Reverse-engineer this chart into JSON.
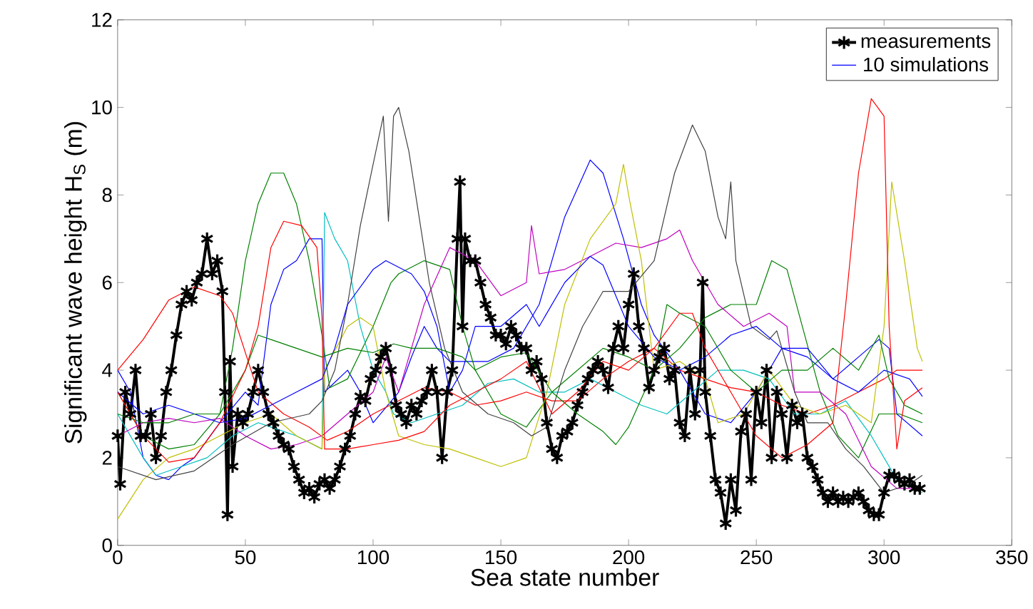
{
  "chart_data": {
    "type": "line",
    "xlabel": "Sea state number",
    "ylabel": "Significant wave height H$_{S}$ (m)",
    "xlim": [
      0,
      350
    ],
    "ylim": [
      0,
      12
    ],
    "xticks": [
      0,
      50,
      100,
      150,
      200,
      250,
      300,
      350
    ],
    "yticks": [
      0,
      2,
      4,
      6,
      8,
      10,
      12
    ],
    "grid": false,
    "legend": "top right",
    "line_style": "solid",
    "marker": "none",
    "series": [
      {
        "name": "measurements",
        "color": "#000000",
        "marker": "cross",
        "x": [
          0,
          1,
          3,
          5,
          7,
          9,
          11,
          13,
          15,
          17,
          19,
          21,
          23,
          25,
          27,
          29,
          31,
          33,
          35,
          37,
          39,
          41,
          42,
          43,
          44,
          45,
          47,
          49,
          51,
          53,
          55,
          57,
          59,
          61,
          63,
          65,
          67,
          69,
          71,
          73,
          75,
          77,
          79,
          81,
          83,
          85,
          87,
          89,
          91,
          93,
          95,
          97,
          99,
          101,
          103,
          105,
          107,
          109,
          111,
          113,
          115,
          117,
          119,
          121,
          123,
          125,
          127,
          129,
          131,
          133,
          134,
          135,
          136,
          138,
          140,
          142,
          144,
          146,
          148,
          150,
          152,
          154,
          156,
          158,
          160,
          162,
          164,
          166,
          168,
          170,
          172,
          174,
          176,
          178,
          180,
          182,
          184,
          186,
          188,
          190,
          192,
          194,
          196,
          198,
          200,
          202,
          204,
          206,
          208,
          210,
          212,
          214,
          216,
          218,
          220,
          222,
          224,
          226,
          228,
          229,
          230,
          232,
          234,
          236,
          238,
          240,
          242,
          244,
          246,
          248,
          250,
          252,
          254,
          256,
          258,
          260,
          262,
          264,
          266,
          268,
          270,
          272,
          274,
          276,
          278,
          280,
          282,
          284,
          286,
          288,
          290,
          292,
          294,
          296,
          298,
          300,
          302,
          304,
          306,
          308,
          310,
          312,
          314
        ],
        "values": [
          2.5,
          1.4,
          3.5,
          3.0,
          4.0,
          2.5,
          2.5,
          3.0,
          2.0,
          2.5,
          3.5,
          4.0,
          4.8,
          5.5,
          5.8,
          5.6,
          6.0,
          6.2,
          7.0,
          6.2,
          6.5,
          5.8,
          3.5,
          0.7,
          4.2,
          1.8,
          3.0,
          2.8,
          3.0,
          3.5,
          4.0,
          3.5,
          3.0,
          2.8,
          2.5,
          2.3,
          2.2,
          1.8,
          1.5,
          1.2,
          1.3,
          1.1,
          1.4,
          1.5,
          1.3,
          1.5,
          1.8,
          2.2,
          2.5,
          3.0,
          3.4,
          3.3,
          3.8,
          4.0,
          4.3,
          4.5,
          4.0,
          3.2,
          3.0,
          2.8,
          3.2,
          3.0,
          3.3,
          3.5,
          4.0,
          3.5,
          2.0,
          3.5,
          4.0,
          7.0,
          8.3,
          5.0,
          7.0,
          6.5,
          6.5,
          6.0,
          5.5,
          5.2,
          4.8,
          4.8,
          4.6,
          5.0,
          4.8,
          4.5,
          4.5,
          4.0,
          4.2,
          3.8,
          2.8,
          2.2,
          2.0,
          2.5,
          2.6,
          2.8,
          3.2,
          3.5,
          3.8,
          4.0,
          4.2,
          4.0,
          3.6,
          4.5,
          5.0,
          4.5,
          5.5,
          6.2,
          5.0,
          4.5,
          3.6,
          4.0,
          4.3,
          4.5,
          3.8,
          4.0,
          2.8,
          2.5,
          4.0,
          3.0,
          4.0,
          6.0,
          3.5,
          2.5,
          1.5,
          1.2,
          0.5,
          1.5,
          0.8,
          2.6,
          3.0,
          1.5,
          3.5,
          2.8,
          4.0,
          2.0,
          3.5,
          3.0,
          2.0,
          3.2,
          2.8,
          3.0,
          2.0,
          1.8,
          1.5,
          1.2,
          1.0,
          1.2,
          1.0,
          1.1,
          1.0,
          1.1,
          1.2,
          1.0,
          0.8,
          0.7,
          0.7,
          1.2,
          1.6,
          1.6,
          1.5,
          1.4,
          1.5,
          1.3,
          1.3
        ]
      },
      {
        "name": "10 simulations",
        "color": "#0000ff",
        "x": [
          0,
          5,
          10,
          15,
          20,
          25,
          30,
          40,
          50,
          55,
          60,
          65,
          70,
          75,
          80,
          81,
          90,
          95,
          100,
          110,
          115,
          120,
          125,
          130,
          135,
          145,
          155,
          165,
          175,
          185,
          190,
          198,
          205,
          210,
          220,
          230,
          240,
          250,
          260,
          270,
          280,
          290,
          298,
          302,
          305,
          315
        ],
        "values": [
          4.0,
          3.5,
          2.0,
          1.6,
          1.5,
          1.8,
          2.0,
          2.8,
          3.5,
          3.2,
          5.5,
          6.3,
          6.5,
          7.0,
          7.0,
          3.5,
          4.0,
          3.5,
          2.8,
          3.5,
          4.3,
          5.0,
          4.5,
          4.2,
          4.2,
          4.2,
          4.5,
          5.5,
          7.5,
          8.8,
          8.5,
          7.0,
          5.5,
          4.8,
          4.0,
          3.0,
          2.8,
          3.5,
          4.5,
          4.3,
          3.8,
          4.3,
          4.7,
          4.5,
          3.0,
          2.5
        ]
      },
      {
        "color": "#008000",
        "x": [
          0,
          10,
          20,
          30,
          40,
          45,
          50,
          55,
          60,
          65,
          70,
          75,
          80,
          83,
          90,
          100,
          107,
          110,
          120,
          130,
          135,
          140,
          150,
          160,
          170,
          180,
          190,
          200,
          210,
          220,
          230,
          240,
          250,
          256,
          262,
          268,
          275,
          282,
          290,
          298,
          302,
          306,
          315
        ],
        "values": [
          3.5,
          2.5,
          2.2,
          2.3,
          3.0,
          4.5,
          6.5,
          7.8,
          8.5,
          8.5,
          7.8,
          6.5,
          4.8,
          3.6,
          3.8,
          5.0,
          6.0,
          6.2,
          6.5,
          6.3,
          5.0,
          4.0,
          3.0,
          2.7,
          3.5,
          4.0,
          4.5,
          4.3,
          4.0,
          4.5,
          5.2,
          5.5,
          5.5,
          6.5,
          6.3,
          5.0,
          3.5,
          2.5,
          2.0,
          3.0,
          3.0,
          3.0,
          2.8
        ]
      },
      {
        "color": "#ff0000",
        "x": [
          0,
          10,
          20,
          30,
          40,
          45,
          55,
          65,
          75,
          82,
          90,
          100,
          110,
          120,
          130,
          140,
          150,
          160,
          170,
          180,
          190,
          200,
          210,
          220,
          230,
          240,
          250,
          260,
          270,
          280,
          290,
          300,
          305,
          315
        ],
        "values": [
          4.0,
          4.7,
          5.6,
          5.9,
          5.7,
          5.3,
          3.5,
          3.0,
          2.7,
          2.4,
          2.6,
          3.0,
          3.3,
          3.6,
          3.5,
          3.2,
          3.3,
          3.5,
          3.3,
          3.3,
          3.8,
          4.2,
          4.5,
          4.0,
          3.8,
          3.6,
          3.5,
          3.2,
          3.0,
          3.2,
          3.5,
          3.8,
          4.0,
          4.0
        ]
      },
      {
        "color": "#00bfbf",
        "x": [
          0,
          10,
          15,
          25,
          35,
          45,
          55,
          60,
          70,
          80,
          81,
          85,
          90,
          95,
          100,
          105,
          108,
          115,
          125,
          135,
          145,
          155,
          165,
          175,
          185,
          195,
          205,
          215,
          225,
          235,
          245,
          255,
          265,
          275,
          285,
          295,
          305,
          315
        ],
        "values": [
          3.0,
          2.0,
          1.6,
          1.8,
          2.0,
          2.5,
          2.8,
          2.7,
          2.5,
          2.2,
          7.6,
          7.0,
          6.5,
          5.0,
          4.0,
          3.5,
          3.0,
          2.8,
          3.0,
          3.2,
          3.7,
          3.8,
          3.5,
          3.5,
          3.8,
          3.5,
          3.2,
          3.0,
          3.5,
          4.0,
          4.0,
          3.8,
          3.0,
          3.0,
          3.3,
          2.5,
          1.5,
          1.2
        ]
      },
      {
        "color": "#bf00bf",
        "x": [
          0,
          10,
          20,
          30,
          40,
          50,
          60,
          70,
          80,
          90,
          100,
          105,
          110,
          120,
          130,
          140,
          150,
          160,
          162,
          165,
          175,
          185,
          195,
          205,
          215,
          220,
          225,
          235,
          245,
          255,
          262,
          265,
          275,
          285,
          295,
          305,
          315
        ],
        "values": [
          2.5,
          2.8,
          2.9,
          2.8,
          2.9,
          2.5,
          2.2,
          2.3,
          2.5,
          3.0,
          3.5,
          4.3,
          3.5,
          5.5,
          6.8,
          6.5,
          5.7,
          6.0,
          7.3,
          6.2,
          6.3,
          6.6,
          6.9,
          6.8,
          7.0,
          7.2,
          6.5,
          5.5,
          5.0,
          5.3,
          5.0,
          3.5,
          3.5,
          3.0,
          1.8,
          1.3,
          1.3
        ]
      },
      {
        "color": "#bfbf00",
        "x": [
          0,
          10,
          20,
          30,
          40,
          50,
          60,
          70,
          80,
          81,
          90,
          95,
          100,
          105,
          110,
          120,
          130,
          140,
          150,
          160,
          168,
          175,
          185,
          195,
          198,
          200,
          205,
          210,
          220,
          230,
          235,
          245,
          255,
          265,
          275,
          285,
          295,
          300,
          303,
          308,
          313,
          315
        ],
        "values": [
          0.6,
          1.5,
          2.0,
          2.2,
          2.5,
          2.8,
          3.0,
          2.5,
          2.2,
          4.0,
          5.0,
          5.2,
          5.0,
          3.5,
          2.5,
          2.3,
          2.2,
          2.0,
          1.8,
          2.0,
          3.5,
          5.5,
          7.0,
          7.8,
          8.7,
          8.0,
          6.5,
          4.0,
          4.2,
          3.8,
          2.8,
          3.0,
          4.0,
          3.2,
          3.0,
          3.2,
          2.8,
          5.0,
          8.3,
          6.5,
          4.5,
          4.2
        ]
      },
      {
        "color": "#404040",
        "x": [
          0,
          15,
          30,
          45,
          60,
          75,
          80,
          85,
          90,
          95,
          100,
          104,
          106,
          108,
          110,
          114,
          118,
          122,
          128,
          135,
          145,
          155,
          162,
          168,
          175,
          182,
          190,
          200,
          210,
          218,
          225,
          230,
          235,
          238,
          240,
          242,
          248,
          255,
          258,
          265,
          270,
          278,
          285,
          292,
          300,
          310,
          315
        ],
        "values": [
          1.8,
          1.5,
          1.7,
          2.3,
          2.8,
          3.0,
          3.3,
          4.0,
          5.5,
          7.3,
          8.7,
          9.8,
          7.4,
          9.8,
          10.0,
          9.0,
          7.5,
          6.0,
          4.5,
          3.5,
          3.0,
          2.8,
          2.5,
          2.7,
          4.0,
          5.0,
          5.8,
          5.8,
          6.5,
          8.5,
          9.6,
          9.0,
          7.5,
          7.0,
          8.3,
          6.5,
          5.0,
          4.7,
          4.9,
          3.5,
          2.8,
          2.8,
          2.2,
          1.8,
          1.2,
          1.4,
          1.6
        ]
      },
      {
        "color": "#0000ff",
        "x": [
          0,
          10,
          20,
          30,
          40,
          50,
          60,
          70,
          80,
          85,
          90,
          100,
          105,
          115,
          120,
          125,
          130,
          135,
          140,
          150,
          160,
          165,
          175,
          185,
          190,
          200,
          210,
          220,
          230,
          240,
          250,
          260,
          270,
          280,
          290,
          300,
          310,
          315
        ],
        "values": [
          3.5,
          3.0,
          3.2,
          3.0,
          2.8,
          2.9,
          3.2,
          3.5,
          3.8,
          4.5,
          5.5,
          6.3,
          6.5,
          6.2,
          5.8,
          5.0,
          3.5,
          4.0,
          5.0,
          5.0,
          5.5,
          5.0,
          6.0,
          6.6,
          6.4,
          5.0,
          4.3,
          4.0,
          4.3,
          4.8,
          5.0,
          4.5,
          4.5,
          3.8,
          3.5,
          4.0,
          3.8,
          3.4
        ]
      },
      {
        "color": "#008000",
        "x": [
          0,
          10,
          20,
          30,
          40,
          50,
          55,
          60,
          70,
          80,
          90,
          100,
          108,
          115,
          125,
          135,
          140,
          150,
          160,
          170,
          180,
          190,
          195,
          200,
          210,
          215,
          220,
          230,
          240,
          250,
          260,
          270,
          280,
          290,
          298,
          302,
          308,
          315
        ],
        "values": [
          3.0,
          2.8,
          2.8,
          3.0,
          3.0,
          4.0,
          4.8,
          4.7,
          4.5,
          4.3,
          4.5,
          4.4,
          4.6,
          4.5,
          4.5,
          4.3,
          4.0,
          4.3,
          4.4,
          3.5,
          3.0,
          2.6,
          2.3,
          2.7,
          4.0,
          5.5,
          5.3,
          5.0,
          4.0,
          3.5,
          4.0,
          4.0,
          4.5,
          4.0,
          4.8,
          3.8,
          3.2,
          3.0
        ]
      },
      {
        "color": "#ff0000",
        "x": [
          0,
          10,
          20,
          30,
          40,
          50,
          55,
          60,
          65,
          72,
          78,
          80,
          81,
          90,
          100,
          110,
          120,
          130,
          140,
          150,
          160,
          170,
          180,
          190,
          200,
          210,
          220,
          225,
          230,
          240,
          250,
          260,
          270,
          280,
          285,
          290,
          295,
          300,
          302,
          305,
          308,
          315
        ],
        "values": [
          3.5,
          2.5,
          1.9,
          2.0,
          2.8,
          4.0,
          5.0,
          6.8,
          7.4,
          7.3,
          6.8,
          5.2,
          2.2,
          2.2,
          2.3,
          2.4,
          2.6,
          3.2,
          3.5,
          3.8,
          4.2,
          3.0,
          3.5,
          4.2,
          4.0,
          4.5,
          5.3,
          5.3,
          4.5,
          3.5,
          2.5,
          2.0,
          2.3,
          2.8,
          5.5,
          8.5,
          10.2,
          9.8,
          5.0,
          2.2,
          3.3,
          3.6
        ]
      }
    ]
  }
}
